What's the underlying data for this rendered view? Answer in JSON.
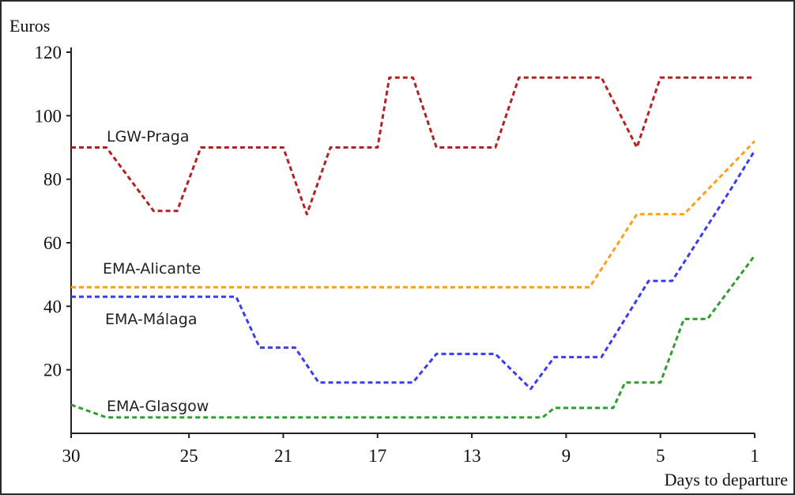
{
  "chart_data": {
    "type": "line",
    "title": "",
    "ylabel": "Euros",
    "xlabel": "Days to departure",
    "xlim": [
      30,
      1
    ],
    "ylim": [
      0,
      120
    ],
    "x_ticks": [
      30,
      25,
      21,
      17,
      13,
      9,
      5,
      1
    ],
    "y_ticks": [
      20,
      40,
      60,
      80,
      100,
      120
    ],
    "grid": false,
    "legend": "inline labels",
    "series": [
      {
        "name": "LGW-Praga",
        "color": "#b22222",
        "points": [
          [
            30,
            90
          ],
          [
            28.5,
            90
          ],
          [
            26.5,
            70
          ],
          [
            25.5,
            70
          ],
          [
            24.5,
            90
          ],
          [
            21,
            90
          ],
          [
            20,
            69
          ],
          [
            19,
            90
          ],
          [
            18,
            90
          ],
          [
            17,
            90
          ],
          [
            16.5,
            112
          ],
          [
            15.5,
            112
          ],
          [
            14.5,
            90
          ],
          [
            12,
            90
          ],
          [
            11,
            112
          ],
          [
            7.5,
            112
          ],
          [
            6,
            90
          ],
          [
            5,
            112
          ],
          [
            1,
            112
          ]
        ]
      },
      {
        "name": "EMA-Alicante",
        "color": "#ff9e1b",
        "points": [
          [
            30,
            46
          ],
          [
            8,
            46
          ],
          [
            6,
            69
          ],
          [
            4,
            69
          ],
          [
            1,
            92
          ]
        ]
      },
      {
        "name": "EMA-Málaga",
        "color": "#3b3bf0",
        "points": [
          [
            30,
            43
          ],
          [
            23,
            43
          ],
          [
            22,
            27
          ],
          [
            20.5,
            27
          ],
          [
            19.5,
            16
          ],
          [
            15.5,
            16
          ],
          [
            14.5,
            25
          ],
          [
            12,
            25
          ],
          [
            10.5,
            14
          ],
          [
            9.5,
            24
          ],
          [
            7.5,
            24
          ],
          [
            5.5,
            48
          ],
          [
            4.5,
            48
          ],
          [
            2,
            77
          ],
          [
            1,
            89
          ]
        ]
      },
      {
        "name": "EMA-Glasgow",
        "color": "#2e9e2e",
        "points": [
          [
            30,
            9
          ],
          [
            28.5,
            5
          ],
          [
            10,
            5
          ],
          [
            9.5,
            8
          ],
          [
            7,
            8
          ],
          [
            6.5,
            16
          ],
          [
            5,
            16
          ],
          [
            4,
            36
          ],
          [
            3,
            36
          ],
          [
            1,
            56
          ]
        ]
      }
    ],
    "annotations": [
      {
        "text": "LGW-Praga",
        "series": "LGW-Praga"
      },
      {
        "text": "EMA-Alicante",
        "series": "EMA-Alicante"
      },
      {
        "text": "EMA-Málaga",
        "series": "EMA-Málaga"
      },
      {
        "text": "EMA-Glasgow",
        "series": "EMA-Glasgow"
      }
    ]
  }
}
